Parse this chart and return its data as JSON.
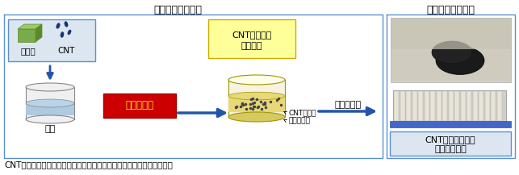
{
  "title_left": "インク化プロセス",
  "title_right": "塗布形成プロセス",
  "bottom_text": "CNTの微細化とポリマーへの分散を同時に行うことにより、インク形成",
  "box1_label1": "高分子",
  "box1_label2": "CNT",
  "solvent_label": "溶媒",
  "mechanical_label": "機械的分散",
  "yellow_box_line1": "CNTー高分子",
  "yellow_box_line2": "混合溶液",
  "cnt_label1": "CNT微粒子",
  "cnt_label2": "高分子溶液",
  "coating_label": "塗布・乾燥",
  "product_label_line1": "CNTー高分子複合",
  "product_label_line2": "熱電変換材料",
  "bg_color": "#ffffff",
  "box1_fill": "#dce6f1",
  "yellow_fill": "#ffff99",
  "red_fill": "#cc0000",
  "arrow_color": "#2255aa",
  "solvent_cylinder_top": "#e8e8e8",
  "solvent_cylinder_body": "#f0f0f0",
  "solvent_liquid_color": "#aec9e0",
  "cnt_cylinder_color": "#e8d878",
  "product_box_fill": "#dce6f1",
  "section_border": "#5a8fd4"
}
